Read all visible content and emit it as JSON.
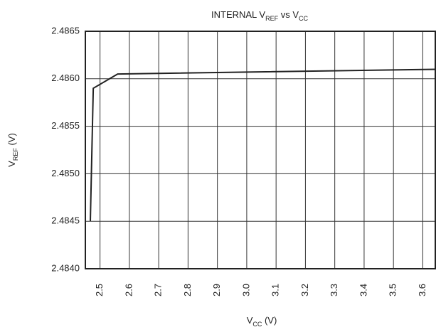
{
  "chart_data": {
    "type": "line",
    "title": [
      "INTERNAL V",
      "REF",
      " vs V",
      "CC"
    ],
    "x_label": [
      "V",
      "CC",
      " (V)"
    ],
    "y_label": [
      "V",
      "REF",
      " (V)"
    ],
    "x": [
      2.467,
      2.477,
      2.56,
      3.645
    ],
    "series": [
      {
        "name": "VREF",
        "color": "#222222",
        "values": [
          2.4845,
          2.4859,
          2.48605,
          2.4861
        ]
      }
    ],
    "xlim": [
      2.45,
      3.645
    ],
    "xticks": [
      2.5,
      2.6,
      2.7,
      2.8,
      2.9,
      {
        "value": 3.0,
        "label": "3.0"
      },
      3.1,
      3.2,
      3.3,
      3.4,
      3.5,
      3.6
    ],
    "ylim": [
      2.484,
      2.4865
    ],
    "yticks": [
      {
        "value": 2.484,
        "label": "2.4840"
      },
      2.4845,
      {
        "value": 2.485,
        "label": "2.4850"
      },
      2.4855,
      {
        "value": 2.486,
        "label": "2.4860"
      },
      2.4865
    ],
    "grid": true
  }
}
